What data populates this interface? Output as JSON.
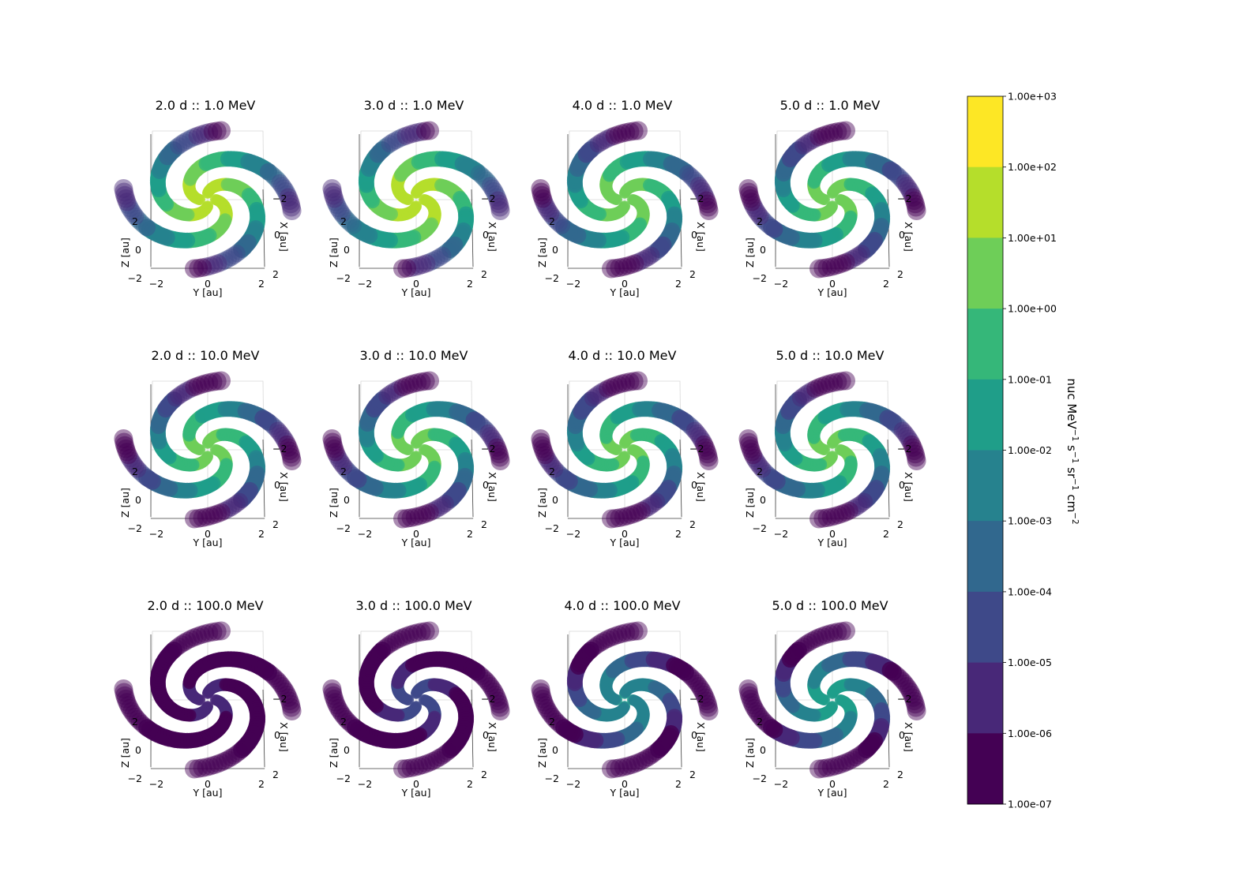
{
  "chart_data": {
    "type": "heatmap",
    "subtype": "3d-spiral-intensity-grid",
    "grid": {
      "rows": 3,
      "cols": 4
    },
    "panels": [
      {
        "title": "2.0 d :: 1.0 MeV",
        "time_d": 2.0,
        "energy_MeV": 1.0,
        "max_log": 1.6
      },
      {
        "title": "3.0 d :: 1.0 MeV",
        "time_d": 3.0,
        "energy_MeV": 1.0,
        "max_log": 1.8
      },
      {
        "title": "4.0 d :: 1.0 MeV",
        "time_d": 4.0,
        "energy_MeV": 1.0,
        "max_log": 0.8
      },
      {
        "title": "5.0 d :: 1.0 MeV",
        "time_d": 5.0,
        "energy_MeV": 1.0,
        "max_log": 0.5
      },
      {
        "title": "2.0 d :: 10.0 MeV",
        "time_d": 2.0,
        "energy_MeV": 10.0,
        "max_log": 0.4
      },
      {
        "title": "3.0 d :: 10.0 MeV",
        "time_d": 3.0,
        "energy_MeV": 10.0,
        "max_log": 0.5
      },
      {
        "title": "4.0 d :: 10.0 MeV",
        "time_d": 4.0,
        "energy_MeV": 10.0,
        "max_log": 0.3
      },
      {
        "title": "5.0 d :: 10.0 MeV",
        "time_d": 5.0,
        "energy_MeV": 10.0,
        "max_log": 0.3
      },
      {
        "title": "2.0 d :: 100.0 MeV",
        "time_d": 2.0,
        "energy_MeV": 100.0,
        "max_log": -5.5
      },
      {
        "title": "3.0 d :: 100.0 MeV",
        "time_d": 3.0,
        "energy_MeV": 100.0,
        "max_log": -4.5
      },
      {
        "title": "4.0 d :: 100.0 MeV",
        "time_d": 4.0,
        "energy_MeV": 100.0,
        "max_log": -2.0
      },
      {
        "title": "5.0 d :: 100.0 MeV",
        "time_d": 5.0,
        "energy_MeV": 100.0,
        "max_log": -1.5
      }
    ],
    "axes": {
      "x_label": "Y [au]",
      "z_label": "Z [au]",
      "depth_label": "X [au]",
      "y_ticks": [
        "−2",
        "0",
        "2"
      ],
      "z_ticks": [
        "−2",
        "0",
        "2"
      ],
      "x_ticks": [
        "2",
        "0",
        "−2"
      ]
    },
    "colorbar": {
      "label": "nuc MeV",
      "label_parts": [
        {
          "t": "nuc MeV",
          "sup": "−1"
        },
        {
          "t": " s",
          "sup": "−1"
        },
        {
          "t": " sr",
          "sup": "−1"
        },
        {
          "t": " cm",
          "sup": "−2"
        }
      ],
      "scale": "log",
      "ticks": [
        "1.00e+03",
        "1.00e+02",
        "1.00e+01",
        "1.00e+00",
        "1.00e-01",
        "1.00e-02",
        "1.00e-03",
        "1.00e-04",
        "1.00e-05",
        "1.00e-06",
        "1.00e-07"
      ],
      "colors_top_to_bottom": [
        "#fde725",
        "#b5de2b",
        "#6ece58",
        "#35b779",
        "#1f9e89",
        "#26828e",
        "#31688e",
        "#3e4989",
        "#482878",
        "#440154"
      ]
    },
    "background_color": "#440154"
  }
}
